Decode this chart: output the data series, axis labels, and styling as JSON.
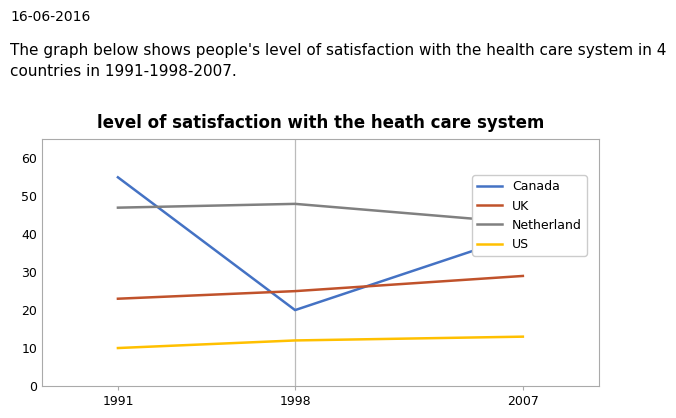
{
  "title": "level of satisfaction with the heath care system",
  "header_date": "16-06-2016",
  "description": "The graph below shows people's level of satisfaction with the health care system in 4\ncountries in 1991-1998-2007.",
  "years": [
    1991,
    1998,
    2007
  ],
  "series": {
    "Canada": {
      "values": [
        55,
        20,
        40
      ],
      "color": "#4472C4"
    },
    "UK": {
      "values": [
        23,
        25,
        29
      ],
      "color": "#C0522B"
    },
    "Netherland": {
      "values": [
        47,
        48,
        43
      ],
      "color": "#808080"
    },
    "US": {
      "values": [
        10,
        12,
        13
      ],
      "color": "#FFC000"
    }
  },
  "ylim": [
    0,
    65
  ],
  "yticks": [
    0,
    10,
    20,
    30,
    40,
    50,
    60
  ],
  "xticks": [
    1991,
    1998,
    2007
  ],
  "vline_x": 1998,
  "background_color": "#ffffff",
  "chart_bg": "#ffffff",
  "title_fontsize": 12,
  "tick_fontsize": 9,
  "legend_fontsize": 9,
  "header_fontsize": 10,
  "desc_fontsize": 11,
  "xlim_left": 1988,
  "xlim_right": 2010
}
